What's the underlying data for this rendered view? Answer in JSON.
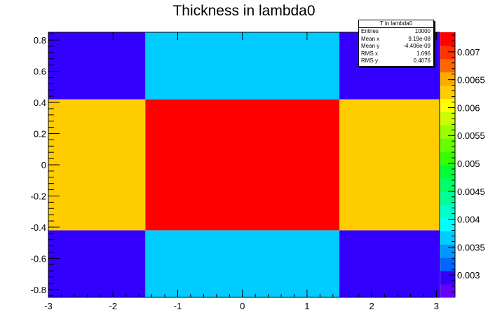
{
  "chart_data": {
    "type": "heatmap",
    "title": "Thickness in lambda0",
    "xlabel": "",
    "ylabel": "",
    "xlim": [
      -3,
      3.05
    ],
    "ylim": [
      -0.85,
      0.85
    ],
    "x_edges": [
      -3,
      -1.5,
      1.5,
      3.05
    ],
    "y_edges": [
      -0.85,
      -0.42,
      0.42,
      0.85
    ],
    "cells": [
      [
        0.00288,
        0.00368,
        0.00288
      ],
      [
        0.00628,
        0.00732,
        0.00628
      ],
      [
        0.00288,
        0.00368,
        0.00288
      ]
    ],
    "zlim": [
      0.0026,
      0.00735
    ],
    "x_ticks": [
      "-3",
      "-2",
      "-1",
      "0",
      "1",
      "2",
      "3"
    ],
    "y_ticks": [
      "-0.8",
      "-0.6",
      "-0.4",
      "-0.2",
      "0",
      "0.2",
      "0.4",
      "0.6",
      "0.8"
    ],
    "z_ticks": [
      "0.003",
      "0.0035",
      "0.004",
      "0.0045",
      "0.005",
      "0.0055",
      "0.006",
      "0.0065",
      "0.007"
    ],
    "palette": [
      "#6600ff",
      "#3300ff",
      "#0066ff",
      "#0099ff",
      "#00ccff",
      "#00ffff",
      "#00ffcc",
      "#00ff99",
      "#00ff66",
      "#00ff33",
      "#33ff00",
      "#66ff00",
      "#99ff00",
      "#ccff00",
      "#ffff00",
      "#ffcc00",
      "#ffaa00",
      "#ff6600",
      "#ff3300",
      "#ff0000"
    ],
    "grid": false,
    "legend": "top-right"
  },
  "stats": {
    "title": "T in lambda0",
    "rows": [
      {
        "label": "Entries",
        "value": "10000"
      },
      {
        "label": "Mean x",
        "value": "9.19e-08"
      },
      {
        "label": "Mean y",
        "value": "-4.406e-09"
      },
      {
        "label": "RMS x",
        "value": "1.696"
      },
      {
        "label": "RMS y",
        "value": "0.4076"
      }
    ]
  }
}
